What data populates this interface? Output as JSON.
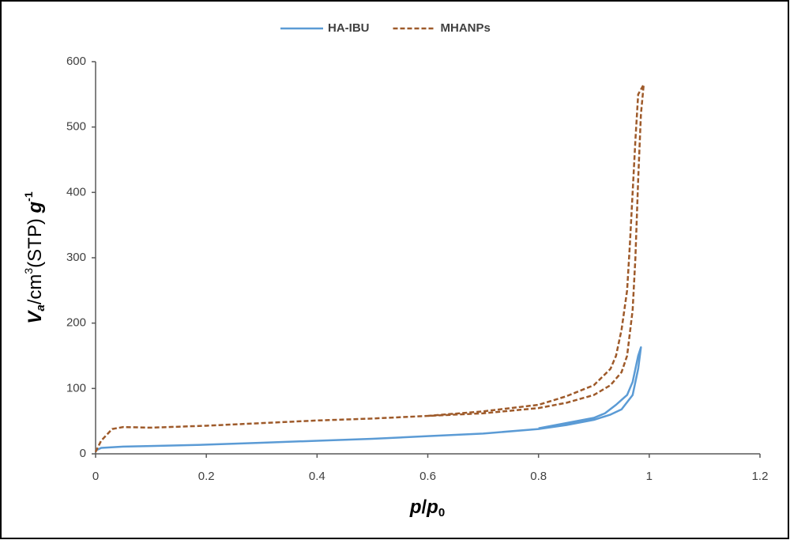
{
  "chart_data": {
    "type": "line",
    "ylabel": [
      "V",
      "a",
      "/cm",
      "3",
      "(STP) ",
      "g",
      "-1"
    ],
    "xlabel": [
      "p",
      "/",
      "p",
      "0"
    ],
    "xlim": [
      0,
      1.2
    ],
    "xticks": [
      0,
      0.2,
      0.4,
      0.6,
      0.8,
      1,
      1.2
    ],
    "ylim": [
      0,
      600
    ],
    "yticks": [
      0,
      100,
      200,
      300,
      400,
      500,
      600
    ],
    "grid": false,
    "legend": "top",
    "series": [
      {
        "name": "HA-IBU",
        "color": "#5b9bd5",
        "dashed": false,
        "x": [
          0,
          0.01,
          0.05,
          0.1,
          0.2,
          0.3,
          0.4,
          0.5,
          0.6,
          0.7,
          0.8,
          0.85,
          0.9,
          0.93,
          0.95,
          0.97,
          0.98,
          0.985,
          0.98,
          0.97,
          0.96,
          0.94,
          0.92,
          0.9,
          0.85,
          0.8
        ],
        "values": [
          5,
          9,
          11,
          12,
          14,
          17,
          20,
          23,
          27,
          31,
          38,
          44,
          52,
          60,
          68,
          90,
          130,
          163,
          150,
          110,
          90,
          75,
          62,
          55,
          47,
          39
        ]
      },
      {
        "name": "MHANPs",
        "color": "#9e5a2a",
        "dashed": true,
        "x": [
          0,
          0.01,
          0.03,
          0.05,
          0.1,
          0.2,
          0.3,
          0.4,
          0.5,
          0.6,
          0.7,
          0.8,
          0.85,
          0.9,
          0.93,
          0.95,
          0.96,
          0.97,
          0.975,
          0.98,
          0.985,
          0.99,
          0.98,
          0.975,
          0.97,
          0.965,
          0.96,
          0.95,
          0.94,
          0.93,
          0.9,
          0.85,
          0.8,
          0.7,
          0.6
        ],
        "values": [
          3,
          20,
          38,
          41,
          40,
          43,
          47,
          51,
          54,
          58,
          62,
          70,
          78,
          90,
          105,
          125,
          150,
          220,
          300,
          420,
          520,
          565,
          550,
          480,
          400,
          320,
          250,
          190,
          150,
          130,
          105,
          88,
          75,
          65,
          58
        ]
      }
    ]
  }
}
